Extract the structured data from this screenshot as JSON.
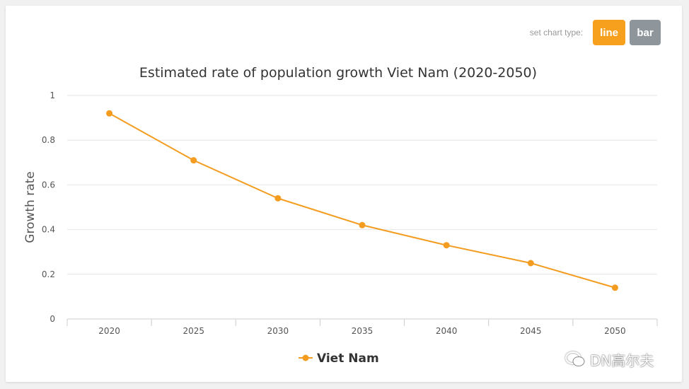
{
  "toolbar": {
    "label": "set chart type:",
    "line_label": "line",
    "bar_label": "bar",
    "active": "line"
  },
  "colors": {
    "accent": "#f7a01d",
    "active_button": "#f7a01d",
    "inactive_button": "#8e959b",
    "series": "#f39c1f",
    "grid": "#e6e6e6"
  },
  "chart_data": {
    "type": "line",
    "title": "Estimated rate of population growth Viet Nam (2020-2050)",
    "xlabel": "",
    "ylabel": "Growth rate",
    "categories": [
      "2020",
      "2025",
      "2030",
      "2035",
      "2040",
      "2045",
      "2050"
    ],
    "series": [
      {
        "name": "Viet Nam",
        "values": [
          0.92,
          0.71,
          0.54,
          0.42,
          0.33,
          0.25,
          0.14
        ]
      }
    ],
    "ylim": [
      0,
      1
    ],
    "yticks": [
      "0",
      "0.2",
      "0.4",
      "0.6",
      "0.8",
      "1"
    ],
    "grid": true,
    "legend": "bottom-center"
  },
  "watermark": {
    "text": "DN高尔夫",
    "icon": "chat-bubbles-icon"
  }
}
